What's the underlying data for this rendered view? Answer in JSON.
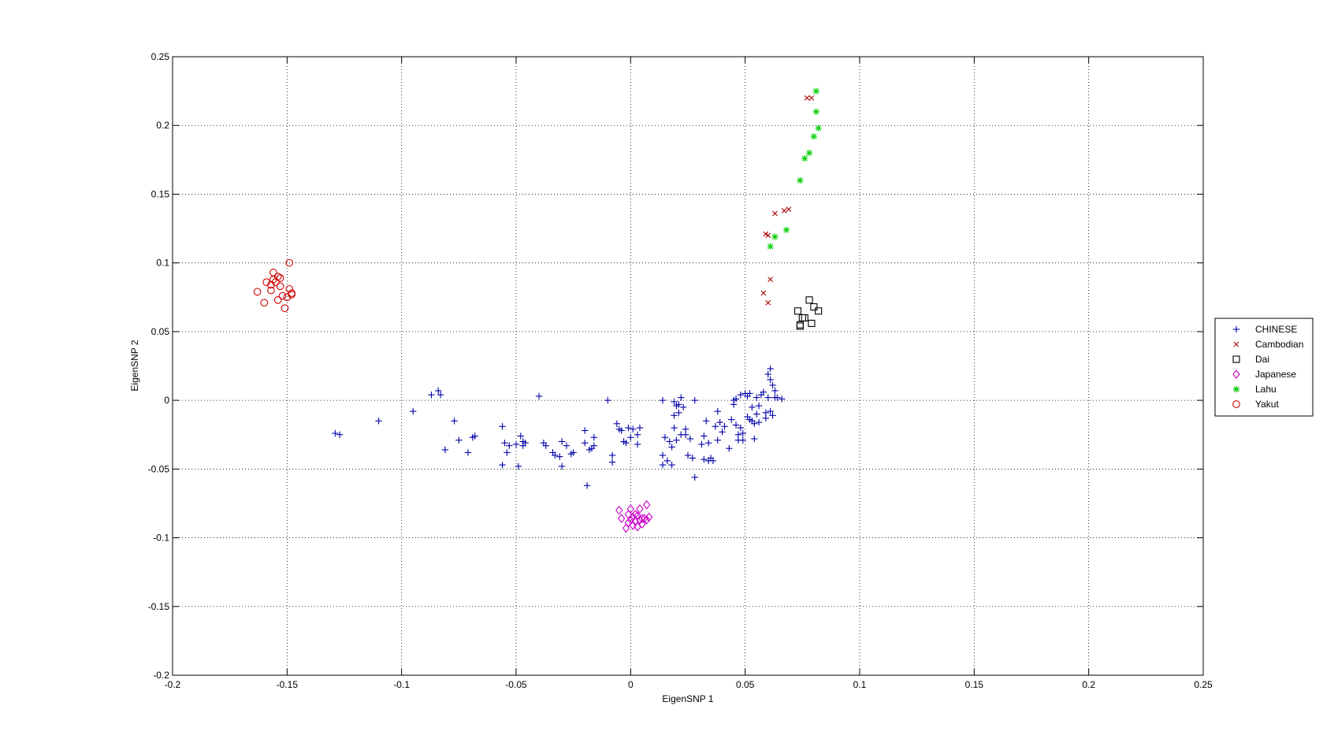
{
  "chart_data": {
    "type": "scatter",
    "title": "",
    "xlabel": "EigenSNP 1",
    "ylabel": "EigenSNP 2",
    "xlim": [
      -0.2,
      0.25
    ],
    "ylim": [
      -0.2,
      0.25
    ],
    "xticks": [
      -0.2,
      -0.15,
      -0.1,
      -0.05,
      0,
      0.05,
      0.1,
      0.15,
      0.2,
      0.25
    ],
    "yticks": [
      -0.2,
      -0.15,
      -0.1,
      -0.05,
      0,
      0.05,
      0.1,
      0.15,
      0.2,
      0.25
    ],
    "xtick_labels": [
      "-0.2",
      "-0.15",
      "-0.1",
      "-0.05",
      "0",
      "0.05",
      "0.1",
      "0.15",
      "0.2",
      "0.25"
    ],
    "ytick_labels": [
      "-0.2",
      "-0.15",
      "-0.1",
      "-0.05",
      "0",
      "0.05",
      "0.1",
      "0.15",
      "0.2",
      "0.25"
    ],
    "grid": true,
    "legend_position": "outside-right",
    "series": [
      {
        "name": "CHINESE",
        "marker": "plus",
        "color": "#0000aa",
        "points": [
          [
            -0.129,
            -0.024
          ],
          [
            -0.127,
            -0.025
          ],
          [
            -0.11,
            -0.015
          ],
          [
            -0.095,
            -0.008
          ],
          [
            -0.087,
            0.004
          ],
          [
            -0.084,
            0.007
          ],
          [
            -0.083,
            0.004
          ],
          [
            -0.081,
            -0.036
          ],
          [
            -0.077,
            -0.015
          ],
          [
            -0.075,
            -0.029
          ],
          [
            -0.071,
            -0.038
          ],
          [
            -0.069,
            -0.027
          ],
          [
            -0.068,
            -0.026
          ],
          [
            -0.056,
            -0.019
          ],
          [
            -0.056,
            -0.047
          ],
          [
            -0.055,
            -0.031
          ],
          [
            -0.054,
            -0.038
          ],
          [
            -0.053,
            -0.033
          ],
          [
            -0.05,
            -0.032
          ],
          [
            -0.049,
            -0.048
          ],
          [
            -0.048,
            -0.026
          ],
          [
            -0.047,
            -0.03
          ],
          [
            -0.047,
            -0.033
          ],
          [
            -0.046,
            -0.031
          ],
          [
            -0.04,
            0.003
          ],
          [
            -0.038,
            -0.031
          ],
          [
            -0.037,
            -0.033
          ],
          [
            -0.034,
            -0.038
          ],
          [
            -0.033,
            -0.04
          ],
          [
            -0.031,
            -0.041
          ],
          [
            -0.03,
            -0.03
          ],
          [
            -0.03,
            -0.048
          ],
          [
            -0.028,
            -0.033
          ],
          [
            -0.026,
            -0.039
          ],
          [
            -0.025,
            -0.038
          ],
          [
            -0.02,
            -0.022
          ],
          [
            -0.02,
            -0.031
          ],
          [
            -0.019,
            -0.062
          ],
          [
            -0.018,
            -0.036
          ],
          [
            -0.017,
            -0.035
          ],
          [
            -0.016,
            -0.027
          ],
          [
            -0.016,
            -0.033
          ],
          [
            -0.01,
            0.0
          ],
          [
            -0.008,
            -0.04
          ],
          [
            -0.008,
            -0.045
          ],
          [
            -0.006,
            -0.017
          ],
          [
            -0.005,
            -0.021
          ],
          [
            -0.004,
            -0.022
          ],
          [
            -0.003,
            -0.03
          ],
          [
            -0.002,
            -0.031
          ],
          [
            -0.001,
            -0.02
          ],
          [
            0.0,
            -0.027
          ],
          [
            0.001,
            -0.021
          ],
          [
            0.003,
            -0.025
          ],
          [
            0.003,
            -0.032
          ],
          [
            0.004,
            -0.02
          ],
          [
            0.014,
            0.0
          ],
          [
            0.014,
            -0.04
          ],
          [
            0.014,
            -0.047
          ],
          [
            0.015,
            -0.027
          ],
          [
            0.016,
            -0.044
          ],
          [
            0.017,
            -0.03
          ],
          [
            0.018,
            -0.034
          ],
          [
            0.018,
            -0.047
          ],
          [
            0.019,
            -0.001
          ],
          [
            0.019,
            -0.011
          ],
          [
            0.019,
            -0.02
          ],
          [
            0.02,
            -0.004
          ],
          [
            0.02,
            -0.029
          ],
          [
            0.021,
            -0.003
          ],
          [
            0.021,
            -0.009
          ],
          [
            0.022,
            0.002
          ],
          [
            0.022,
            -0.025
          ],
          [
            0.023,
            -0.005
          ],
          [
            0.024,
            -0.025
          ],
          [
            0.024,
            -0.021
          ],
          [
            0.025,
            -0.04
          ],
          [
            0.026,
            -0.028
          ],
          [
            0.027,
            -0.042
          ],
          [
            0.028,
            0.0
          ],
          [
            0.028,
            -0.056
          ],
          [
            0.031,
            -0.032
          ],
          [
            0.032,
            -0.026
          ],
          [
            0.032,
            -0.043
          ],
          [
            0.033,
            -0.015
          ],
          [
            0.034,
            -0.031
          ],
          [
            0.034,
            -0.044
          ],
          [
            0.035,
            -0.042
          ],
          [
            0.036,
            -0.044
          ],
          [
            0.037,
            -0.019
          ],
          [
            0.038,
            -0.029
          ],
          [
            0.038,
            -0.008
          ],
          [
            0.039,
            -0.016
          ],
          [
            0.04,
            -0.023
          ],
          [
            0.041,
            -0.019
          ],
          [
            0.043,
            -0.035
          ],
          [
            0.044,
            -0.014
          ],
          [
            0.045,
            -0.003
          ],
          [
            0.045,
            0.0
          ],
          [
            0.046,
            -0.018
          ],
          [
            0.046,
            0.001
          ],
          [
            0.047,
            -0.025
          ],
          [
            0.047,
            -0.029
          ],
          [
            0.048,
            -0.02
          ],
          [
            0.048,
            0.004
          ],
          [
            0.049,
            -0.024
          ],
          [
            0.049,
            -0.029
          ],
          [
            0.05,
            0.005
          ],
          [
            0.051,
            0.003
          ],
          [
            0.051,
            -0.012
          ],
          [
            0.052,
            -0.014
          ],
          [
            0.052,
            0.005
          ],
          [
            0.053,
            -0.005
          ],
          [
            0.053,
            -0.015
          ],
          [
            0.054,
            -0.017
          ],
          [
            0.054,
            -0.028
          ],
          [
            0.055,
            -0.01
          ],
          [
            0.055,
            0.002
          ],
          [
            0.056,
            -0.016
          ],
          [
            0.056,
            -0.004
          ],
          [
            0.057,
            0.004
          ],
          [
            0.058,
            0.006
          ],
          [
            0.059,
            -0.013
          ],
          [
            0.059,
            -0.009
          ],
          [
            0.06,
            0.019
          ],
          [
            0.06,
            0.002
          ],
          [
            0.061,
            0.023
          ],
          [
            0.061,
            0.015
          ],
          [
            0.061,
            -0.008
          ],
          [
            0.062,
            -0.011
          ],
          [
            0.062,
            0.011
          ],
          [
            0.063,
            0.007
          ],
          [
            0.063,
            0.002
          ],
          [
            0.064,
            0.002
          ],
          [
            0.066,
            0.001
          ]
        ]
      },
      {
        "name": "Cambodian",
        "marker": "x",
        "color": "#aa0000",
        "points": [
          [
            0.058,
            0.078
          ],
          [
            0.059,
            0.121
          ],
          [
            0.06,
            0.12
          ],
          [
            0.06,
            0.071
          ],
          [
            0.061,
            0.088
          ],
          [
            0.063,
            0.136
          ],
          [
            0.067,
            0.138
          ],
          [
            0.069,
            0.139
          ],
          [
            0.077,
            0.22
          ],
          [
            0.079,
            0.22
          ]
        ]
      },
      {
        "name": "Dai",
        "marker": "square",
        "color": "#000000",
        "points": [
          [
            0.073,
            0.065
          ],
          [
            0.074,
            0.055
          ],
          [
            0.074,
            0.054
          ],
          [
            0.075,
            0.06
          ],
          [
            0.076,
            0.06
          ],
          [
            0.078,
            0.073
          ],
          [
            0.079,
            0.056
          ],
          [
            0.08,
            0.068
          ],
          [
            0.082,
            0.065
          ]
        ]
      },
      {
        "name": "Japanese",
        "marker": "diamond",
        "color": "#cc00cc",
        "points": [
          [
            -0.005,
            -0.08
          ],
          [
            -0.004,
            -0.086
          ],
          [
            -0.002,
            -0.093
          ],
          [
            -0.001,
            -0.083
          ],
          [
            -0.001,
            -0.089
          ],
          [
            0.0,
            -0.079
          ],
          [
            0.0,
            -0.087
          ],
          [
            0.001,
            -0.085
          ],
          [
            0.001,
            -0.091
          ],
          [
            0.002,
            -0.083
          ],
          [
            0.002,
            -0.088
          ],
          [
            0.003,
            -0.084
          ],
          [
            0.003,
            -0.092
          ],
          [
            0.004,
            -0.079
          ],
          [
            0.004,
            -0.087
          ],
          [
            0.005,
            -0.086
          ],
          [
            0.005,
            -0.09
          ],
          [
            0.006,
            -0.086
          ],
          [
            0.007,
            -0.076
          ],
          [
            0.007,
            -0.087
          ],
          [
            0.008,
            -0.085
          ]
        ]
      },
      {
        "name": "Lahu",
        "marker": "star",
        "color": "#00cc00",
        "points": [
          [
            0.061,
            0.112
          ],
          [
            0.063,
            0.119
          ],
          [
            0.068,
            0.124
          ],
          [
            0.074,
            0.16
          ],
          [
            0.076,
            0.176
          ],
          [
            0.078,
            0.18
          ],
          [
            0.08,
            0.192
          ],
          [
            0.081,
            0.21
          ],
          [
            0.081,
            0.225
          ],
          [
            0.082,
            0.198
          ]
        ]
      },
      {
        "name": "Yakut",
        "marker": "circle",
        "color": "#cc0000",
        "points": [
          [
            -0.163,
            0.079
          ],
          [
            -0.16,
            0.071
          ],
          [
            -0.159,
            0.086
          ],
          [
            -0.157,
            0.084
          ],
          [
            -0.157,
            0.08
          ],
          [
            -0.156,
            0.093
          ],
          [
            -0.156,
            0.088
          ],
          [
            -0.155,
            0.086
          ],
          [
            -0.154,
            0.09
          ],
          [
            -0.154,
            0.073
          ],
          [
            -0.153,
            0.083
          ],
          [
            -0.153,
            0.089
          ],
          [
            -0.152,
            0.076
          ],
          [
            -0.151,
            0.067
          ],
          [
            -0.15,
            0.075
          ],
          [
            -0.149,
            0.081
          ],
          [
            -0.149,
            0.1
          ],
          [
            -0.148,
            0.077
          ],
          [
            -0.148,
            0.078
          ]
        ]
      }
    ]
  }
}
